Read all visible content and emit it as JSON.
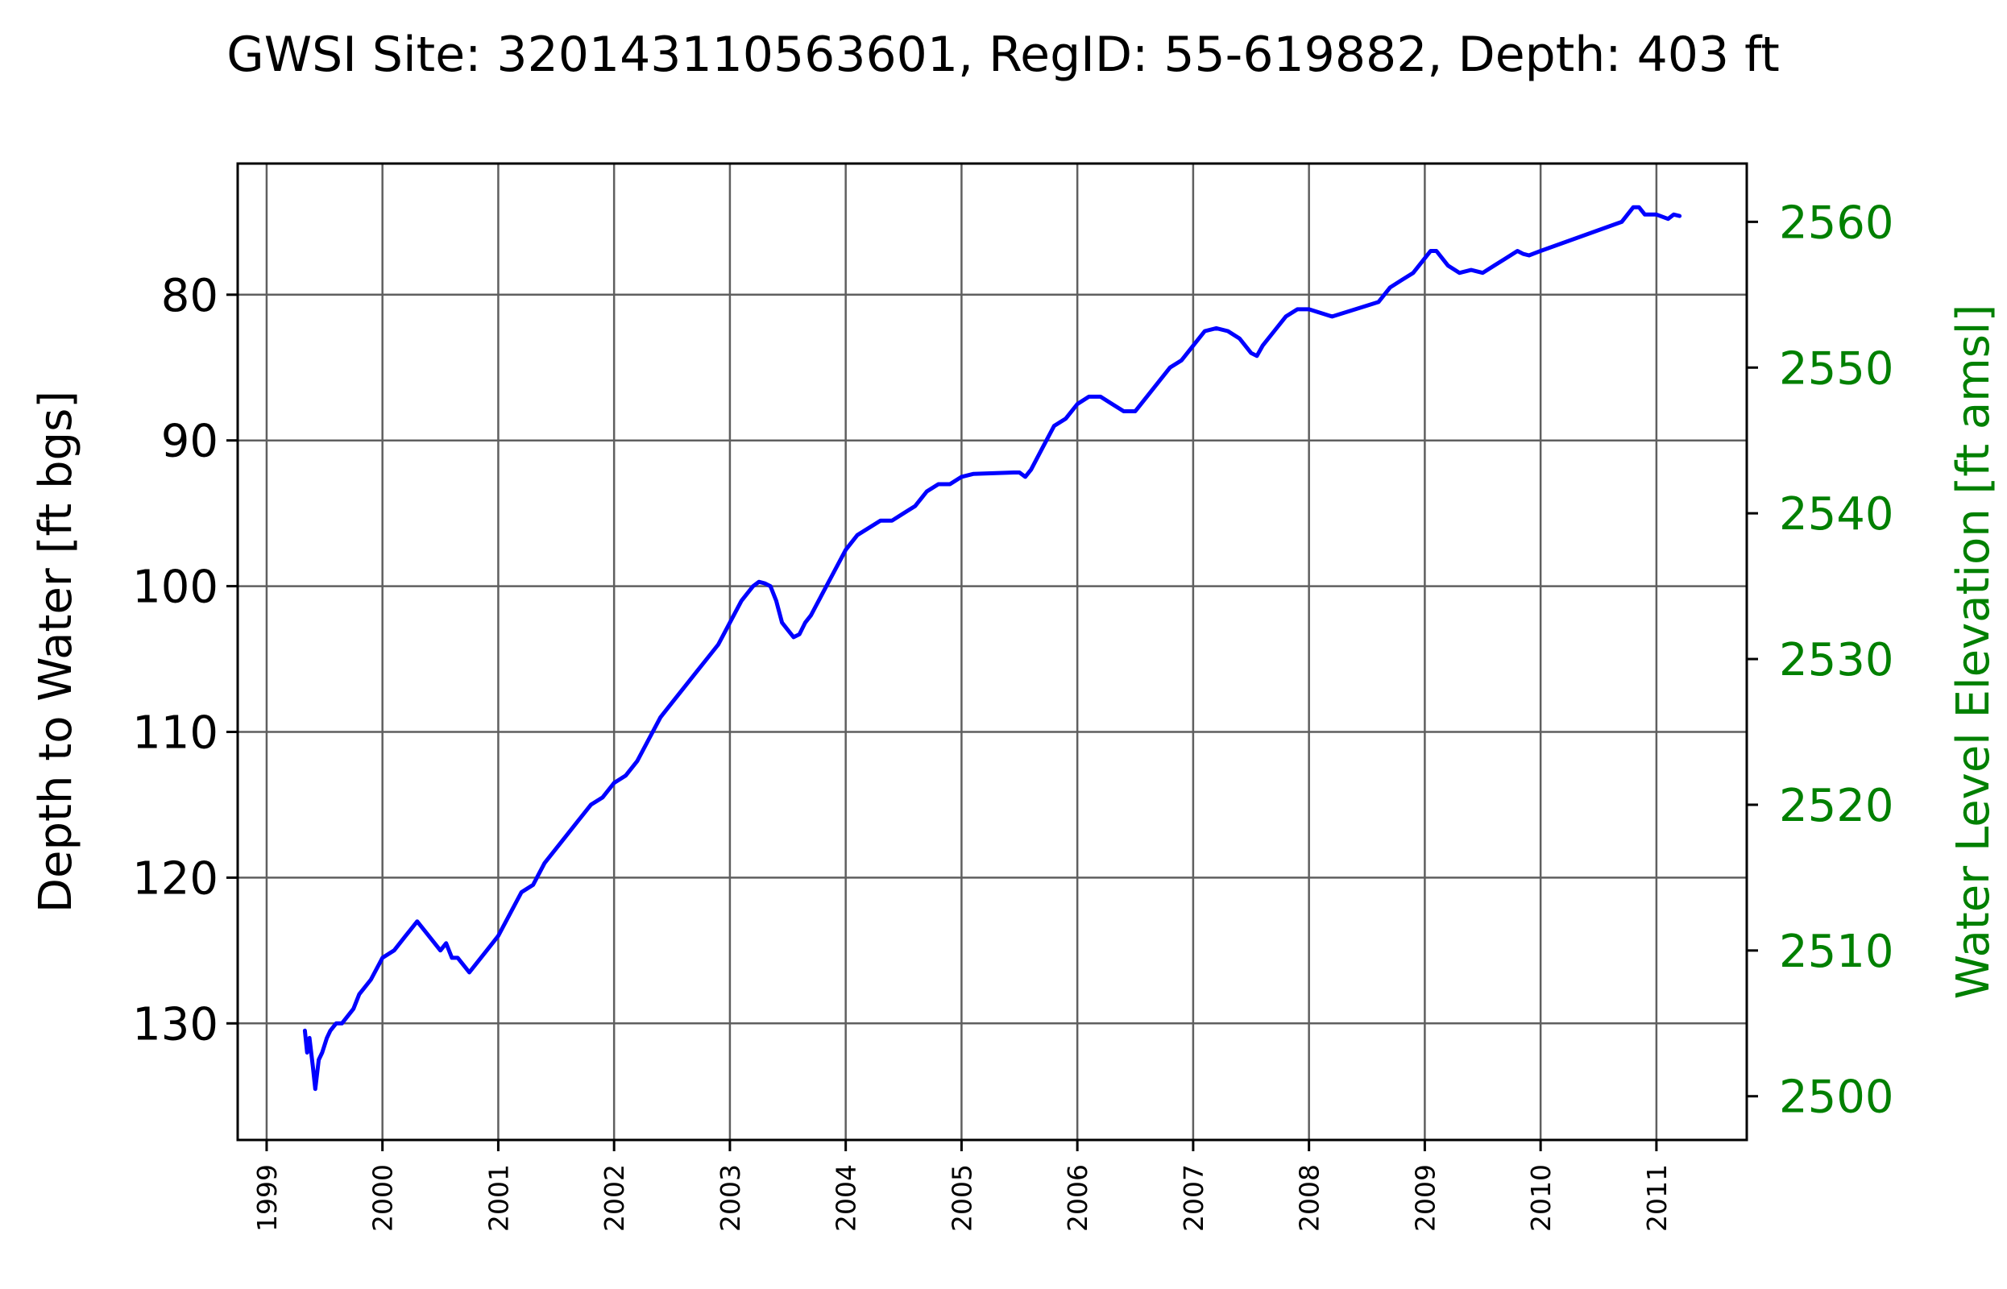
{
  "chart_data": {
    "type": "line",
    "title": "GWSI Site: 320143110563601, RegID: 55-619882, Depth: 403 ft",
    "ylabel": "Depth to Water [ft bgs]",
    "ylabel_right": "Water Level Elevation [ft amsl]",
    "xlabel": "",
    "ylim": [
      138,
      71
    ],
    "ylim_right": [
      2497,
      2564
    ],
    "y_inverted": true,
    "xlim": [
      1998.75,
      2011.78
    ],
    "grid": true,
    "right_axis_color": "#008000",
    "series_color": "#0000ff",
    "x_ticks": [
      "1999",
      "2000",
      "2001",
      "2002",
      "2003",
      "2004",
      "2005",
      "2006",
      "2007",
      "2008",
      "2009",
      "2010",
      "2011"
    ],
    "y_ticks": [
      "80",
      "90",
      "100",
      "110",
      "120",
      "130"
    ],
    "y_ticks_right": [
      "2500",
      "2510",
      "2520",
      "2530",
      "2540",
      "2550",
      "2560"
    ],
    "series": [
      {
        "x": [
          1999.33,
          1999.35,
          1999.37,
          1999.4,
          1999.42,
          1999.45,
          1999.48,
          1999.52,
          1999.55,
          1999.6,
          1999.65,
          1999.7,
          1999.75,
          1999.8,
          1999.85,
          1999.9,
          2000.0,
          2000.1,
          2000.2,
          2000.3,
          2000.4,
          2000.5,
          2000.55,
          2000.6,
          2000.65,
          2000.7,
          2000.75,
          2000.8,
          2000.9,
          2001.0,
          2001.1,
          2001.2,
          2001.3,
          2001.4,
          2001.5,
          2001.6,
          2001.7,
          2001.8,
          2001.9,
          2002.0,
          2002.1,
          2002.2,
          2002.3,
          2002.4,
          2002.5,
          2002.6,
          2002.7,
          2002.8,
          2002.9,
          2003.0,
          2003.1,
          2003.2,
          2003.25,
          2003.3,
          2003.35,
          2003.4,
          2003.45,
          2003.5,
          2003.55,
          2003.6,
          2003.65,
          2003.7,
          2003.8,
          2003.9,
          2004.0,
          2004.1,
          2004.2,
          2004.3,
          2004.4,
          2004.5,
          2004.6,
          2004.7,
          2004.8,
          2004.9,
          2005.0,
          2005.1,
          2005.45,
          2005.5,
          2005.55,
          2005.6,
          2005.7,
          2005.8,
          2005.9,
          2006.0,
          2006.1,
          2006.2,
          2006.3,
          2006.4,
          2006.5,
          2006.6,
          2006.7,
          2006.8,
          2006.9,
          2007.0,
          2007.1,
          2007.2,
          2007.3,
          2007.4,
          2007.5,
          2007.55,
          2007.6,
          2007.7,
          2007.8,
          2007.9,
          2008.0,
          2008.2,
          2008.6,
          2008.7,
          2008.8,
          2008.9,
          2009.0,
          2009.05,
          2009.1,
          2009.2,
          2009.3,
          2009.4,
          2009.5,
          2009.6,
          2009.7,
          2009.8,
          2009.85,
          2009.9,
          2010.0,
          2010.7,
          2010.8,
          2010.85,
          2010.9,
          2011.0,
          2011.1,
          2011.15,
          2011.2
        ],
        "y": [
          130.5,
          132.0,
          131.0,
          133.0,
          134.5,
          132.5,
          132.0,
          131.0,
          130.5,
          130.0,
          130.0,
          129.5,
          129.0,
          128.0,
          127.5,
          127.0,
          125.5,
          125.0,
          124.0,
          123.0,
          124.0,
          125.0,
          124.5,
          125.5,
          125.5,
          126.0,
          126.5,
          126.0,
          125.0,
          124.0,
          122.5,
          121.0,
          120.5,
          119.0,
          118.0,
          117.0,
          116.0,
          115.0,
          114.5,
          113.5,
          113.0,
          112.0,
          110.5,
          109.0,
          108.0,
          107.0,
          106.0,
          105.0,
          104.0,
          102.5,
          101.0,
          100.0,
          99.7,
          99.8,
          100.0,
          101.0,
          102.5,
          103.0,
          103.5,
          103.3,
          102.5,
          102.0,
          100.5,
          99.0,
          97.5,
          96.5,
          96.0,
          95.5,
          95.5,
          95.0,
          94.5,
          93.5,
          93.0,
          93.0,
          92.5,
          92.3,
          92.2,
          92.2,
          92.5,
          92.0,
          90.5,
          89.0,
          88.5,
          87.5,
          87.0,
          87.0,
          87.5,
          88.0,
          88.0,
          87.0,
          86.0,
          85.0,
          84.5,
          83.5,
          82.5,
          82.3,
          82.5,
          83.0,
          84.0,
          84.2,
          83.5,
          82.5,
          81.5,
          81.0,
          81.0,
          81.5,
          80.5,
          79.5,
          79.0,
          78.5,
          77.5,
          77.0,
          77.0,
          78.0,
          78.5,
          78.3,
          78.5,
          78.0,
          77.5,
          77.0,
          77.2,
          77.3,
          77.0,
          75.0,
          74.0,
          74.0,
          74.5,
          74.5,
          74.8,
          74.5,
          74.6
        ]
      }
    ]
  }
}
